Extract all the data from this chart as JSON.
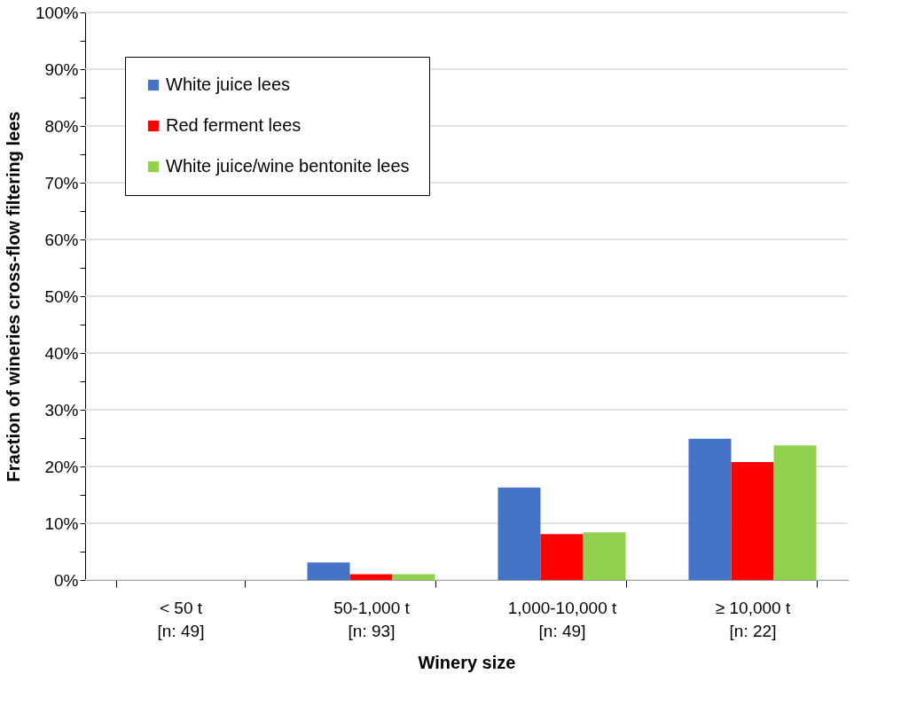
{
  "chart_data": {
    "type": "bar",
    "xlabel": "Winery size",
    "ylabel": "Fraction of wineries cross-flow filtering lees",
    "categories": [
      "< 50 t\n[n: 49]",
      "50-1,000 t\n[n: 93]",
      "1,000-10,000 t\n[n: 49]",
      "≥ 10,000 t\n[n: 22]"
    ],
    "series": [
      {
        "name": "White juice lees",
        "color": "#4472c4",
        "values": [
          0,
          3.1,
          16.3,
          24.9
        ]
      },
      {
        "name": "Red ferment lees",
        "color": "#ff0000",
        "values": [
          0,
          1.0,
          8.1,
          20.8
        ]
      },
      {
        "name": "White juice/wine bentonite lees",
        "color": "#92d050",
        "values": [
          0,
          1.0,
          8.4,
          23.7
        ]
      }
    ],
    "ylim": [
      0,
      100
    ],
    "yticks": [
      {
        "value": 0,
        "label": "0%"
      },
      {
        "value": 5,
        "label": null
      },
      {
        "value": 10,
        "label": "10%"
      },
      {
        "value": 15,
        "label": null
      },
      {
        "value": 20,
        "label": "20%"
      },
      {
        "value": 25,
        "label": null
      },
      {
        "value": 30,
        "label": "30%"
      },
      {
        "value": 35,
        "label": null
      },
      {
        "value": 40,
        "label": "40%"
      },
      {
        "value": 45,
        "label": null
      },
      {
        "value": 50,
        "label": "50%"
      },
      {
        "value": 55,
        "label": null
      },
      {
        "value": 60,
        "label": "60%"
      },
      {
        "value": 65,
        "label": null
      },
      {
        "value": 70,
        "label": "70%"
      },
      {
        "value": 75,
        "label": null
      },
      {
        "value": 80,
        "label": "80%"
      },
      {
        "value": 85,
        "label": null
      },
      {
        "value": 90,
        "label": "90%"
      },
      {
        "value": 95,
        "label": null
      },
      {
        "value": 100,
        "label": "100%"
      }
    ],
    "grid": "y",
    "legend": "top left"
  }
}
